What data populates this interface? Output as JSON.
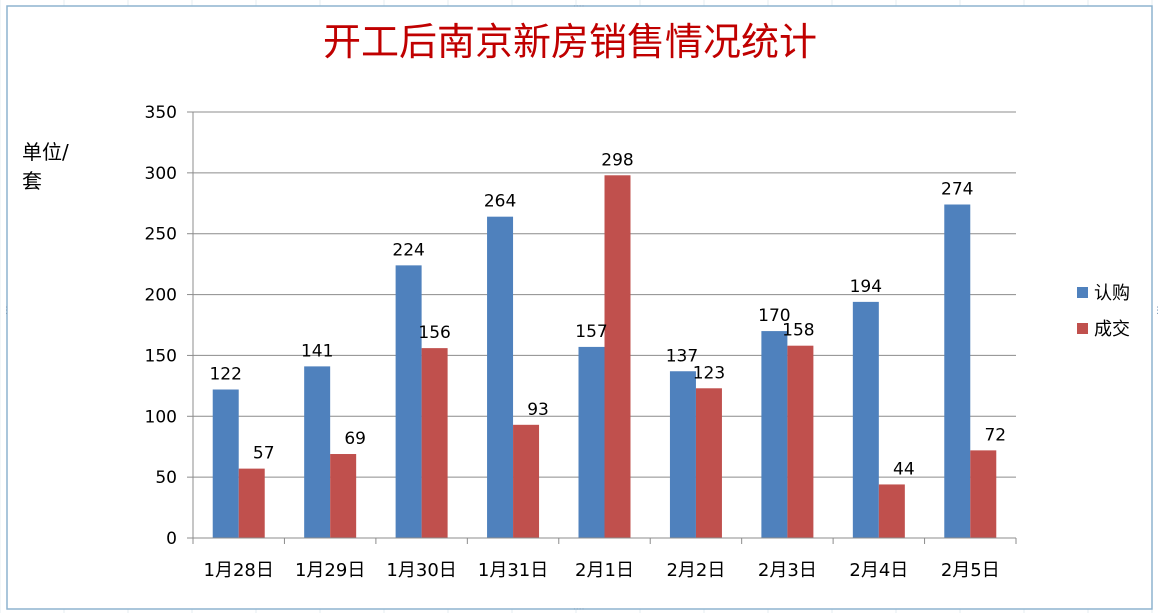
{
  "chart_data": {
    "type": "bar",
    "title": "开工后南京新房销售情况统计",
    "ylabel_line1": "单位/",
    "ylabel_line2": "套",
    "categories": [
      "1月28日",
      "1月29日",
      "1月30日",
      "1月31日",
      "2月1日",
      "2月2日",
      "2月3日",
      "2月4日",
      "2月5日"
    ],
    "series": [
      {
        "name": "认购",
        "color": "#4F81BD",
        "values": [
          122,
          141,
          224,
          264,
          157,
          137,
          170,
          194,
          274
        ]
      },
      {
        "name": "成交",
        "color": "#C0504D",
        "values": [
          57,
          69,
          156,
          93,
          298,
          123,
          158,
          44,
          72
        ]
      }
    ],
    "ylim": [
      0,
      350
    ],
    "yticks": [
      0,
      50,
      100,
      150,
      200,
      250,
      300,
      350
    ],
    "grid": true,
    "legend_position": "right",
    "data_labels": true,
    "title_color": "#C00000"
  }
}
